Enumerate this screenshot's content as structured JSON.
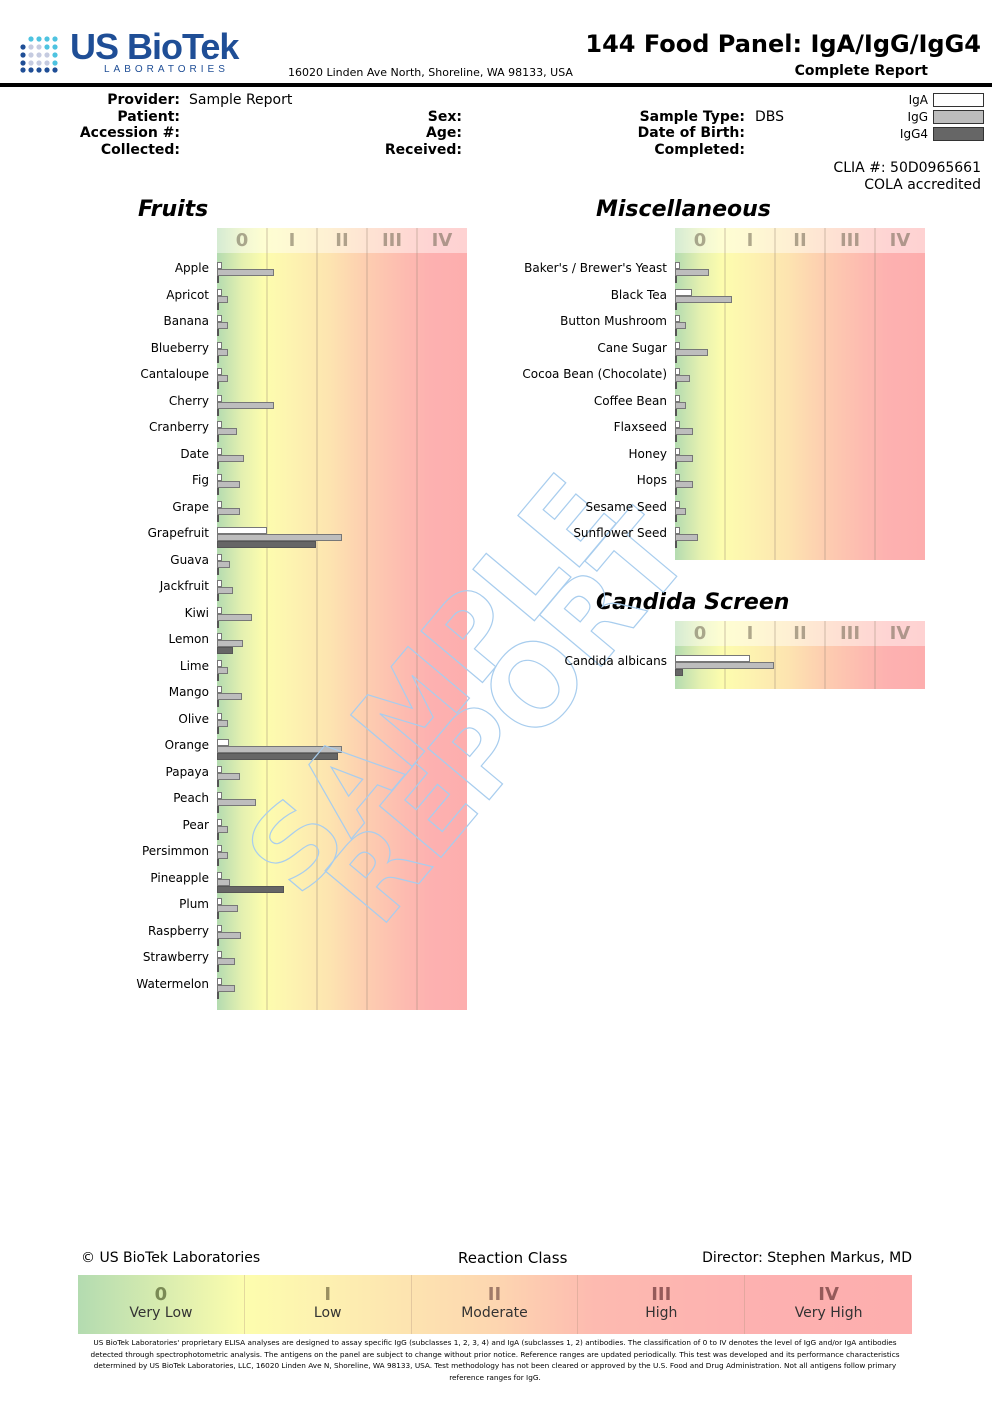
{
  "header": {
    "logo_main": "US BioTek",
    "logo_sub": "LABORATORIES",
    "address": "16020 Linden Ave North, Shoreline, WA 98133, USA",
    "title": "144 Food Panel: IgA/IgG/IgG4",
    "subtitle": "Complete Report"
  },
  "patient_info": {
    "provider_label": "Provider:",
    "provider_value": "Sample Report",
    "patient_label": "Patient:",
    "accession_label": "Accession #:",
    "collected_label": "Collected:",
    "sex_label": "Sex:",
    "age_label": "Age:",
    "received_label": "Received:",
    "sample_type_label": "Sample Type:",
    "sample_type_value": "DBS",
    "dob_label": "Date of Birth:",
    "completed_label": "Completed:"
  },
  "legend": [
    {
      "label": "IgA",
      "color": "#ffffff"
    },
    {
      "label": "IgG",
      "color": "#bdbdbd"
    },
    {
      "label": "IgG4",
      "color": "#666666"
    }
  ],
  "clia": "CLIA #: 50D0965661",
  "cola": "COLA accredited",
  "classes": [
    "0",
    "I",
    "II",
    "III",
    "IV"
  ],
  "chart_data": [
    {
      "type": "bar",
      "title": "Fruits",
      "orientation": "horizontal",
      "xlim": [
        0,
        5
      ],
      "tick_labels": [
        "0",
        "I",
        "II",
        "III",
        "IV"
      ],
      "series_names": [
        "IgA",
        "IgG",
        "IgG4"
      ],
      "categories": [
        "Apple",
        "Apricot",
        "Banana",
        "Blueberry",
        "Cantaloupe",
        "Cherry",
        "Cranberry",
        "Date",
        "Fig",
        "Grape",
        "Grapefruit",
        "Guava",
        "Jackfruit",
        "Kiwi",
        "Lemon",
        "Lime",
        "Mango",
        "Olive",
        "Orange",
        "Papaya",
        "Peach",
        "Pear",
        "Persimmon",
        "Pineapple",
        "Plum",
        "Raspberry",
        "Strawberry",
        "Watermelon"
      ],
      "series": [
        {
          "name": "IgA",
          "values": [
            0.1,
            0.1,
            0.1,
            0.1,
            0.1,
            0.1,
            0.1,
            0.1,
            0.1,
            0.1,
            1.0,
            0.1,
            0.1,
            0.1,
            0.1,
            0.1,
            0.1,
            0.1,
            0.23,
            0.1,
            0.1,
            0.1,
            0.1,
            0.1,
            0.1,
            0.1,
            0.1,
            0.1
          ]
        },
        {
          "name": "IgG",
          "values": [
            1.13,
            0.21,
            0.21,
            0.21,
            0.21,
            1.13,
            0.4,
            0.53,
            0.45,
            0.45,
            2.49,
            0.25,
            0.31,
            0.69,
            0.51,
            0.21,
            0.49,
            0.21,
            2.49,
            0.45,
            0.77,
            0.21,
            0.21,
            0.25,
            0.41,
            0.47,
            0.36,
            0.36
          ]
        },
        {
          "name": "IgG4",
          "values": [
            0.04,
            0.04,
            0.04,
            0.04,
            0.04,
            0.04,
            0.04,
            0.04,
            0.04,
            0.04,
            1.97,
            0.04,
            0.04,
            0.04,
            0.31,
            0.04,
            0.04,
            0.04,
            2.41,
            0.04,
            0.04,
            0.04,
            0.04,
            1.33,
            0.04,
            0.04,
            0.04,
            0.04
          ]
        }
      ]
    },
    {
      "type": "bar",
      "title": "Miscellaneous",
      "orientation": "horizontal",
      "xlim": [
        0,
        5
      ],
      "tick_labels": [
        "0",
        "I",
        "II",
        "III",
        "IV"
      ],
      "series_names": [
        "IgA",
        "IgG",
        "IgG4"
      ],
      "categories": [
        "Baker's / Brewer's Yeast",
        "Black Tea",
        "Button Mushroom",
        "Cane Sugar",
        "Cocoa Bean (Chocolate)",
        "Coffee Bean",
        "Flaxseed",
        "Honey",
        "Hops",
        "Sesame Seed",
        "Sunflower Seed"
      ],
      "series": [
        {
          "name": "IgA",
          "values": [
            0.1,
            0.34,
            0.1,
            0.1,
            0.1,
            0.1,
            0.1,
            0.1,
            0.1,
            0.1,
            0.1
          ]
        },
        {
          "name": "IgG",
          "values": [
            0.67,
            1.13,
            0.21,
            0.65,
            0.3,
            0.21,
            0.36,
            0.36,
            0.36,
            0.21,
            0.46
          ]
        },
        {
          "name": "IgG4",
          "values": [
            0.04,
            0.04,
            0.04,
            0.04,
            0.04,
            0.04,
            0.04,
            0.04,
            0.04,
            0.04,
            0.04
          ]
        }
      ]
    },
    {
      "type": "bar",
      "title": "Candida Screen",
      "orientation": "horizontal",
      "xlim": [
        0,
        5
      ],
      "tick_labels": [
        "0",
        "I",
        "II",
        "III",
        "IV"
      ],
      "series_names": [
        "IgA",
        "IgG",
        "IgG4"
      ],
      "categories": [
        "Candida albicans"
      ],
      "series": [
        {
          "name": "IgA",
          "values": [
            1.5
          ]
        },
        {
          "name": "IgG",
          "values": [
            1.97
          ]
        },
        {
          "name": "IgG4",
          "values": [
            0.15
          ]
        }
      ]
    }
  ],
  "footer": {
    "copyright": "© US BioTek Laboratories",
    "reaction_class": "Reaction Class",
    "director": "Director: Stephen Markus, MD",
    "class_names": [
      "Very Low",
      "Low",
      "Moderate",
      "High",
      "Very High"
    ],
    "disclaimer": "US BioTek Laboratories' proprietary ELISA analyses are designed to assay specific IgG (subclasses 1, 2, 3, 4) and IgA (subclasses 1, 2) antibodies. The classification of 0 to IV denotes the level of IgG and/or IgA antibodies detected through spectrophotometric analysis. The antigens on the panel are subject to change without prior notice. Reference ranges are updated periodically. This test was developed and its performance characteristics determined by US BioTek Laboratories, LLC, 16020 Linden Ave N, Shoreline, WA 98133, USA. Test methodology has not been cleared or approved by the U.S. Food and Drug Administration. Not all antigens follow primary reference ranges for IgG."
  },
  "watermark": {
    "line1": "SAMPLE",
    "line2": "REPORT"
  },
  "colors": {
    "brand": "#1f4e96",
    "iga": "#ffffff",
    "igg": "#bdbdbd",
    "igg4": "#666666"
  }
}
